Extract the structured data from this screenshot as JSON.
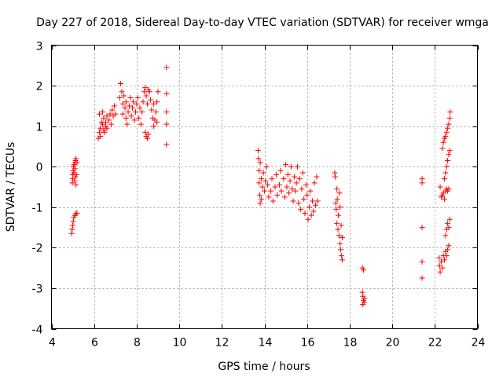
{
  "chart_data": {
    "type": "scatter",
    "title": "Day 227 of 2018, Sidereal Day-to-day VTEC variation (SDTVAR) for receiver wmga",
    "xlabel": "GPS time / hours",
    "ylabel": "SDTVAR / TECUs",
    "xlim": [
      4,
      24
    ],
    "ylim": [
      -4,
      3
    ],
    "xticks": [
      "4",
      "6",
      "8",
      "10",
      "12",
      "14",
      "16",
      "18",
      "20",
      "22",
      "24"
    ],
    "yticks": [
      "-4",
      "-3",
      "-2",
      "-1",
      "0",
      "1",
      "2",
      "3"
    ],
    "grid": true,
    "marker": "+",
    "color": "#ff0000",
    "series": [
      {
        "name": "SDTVAR",
        "points": [
          [
            4.95,
            -1.65
          ],
          [
            4.97,
            -1.55
          ],
          [
            5.0,
            -1.45
          ],
          [
            5.02,
            -1.35
          ],
          [
            5.05,
            -1.25
          ],
          [
            5.1,
            -1.2
          ],
          [
            5.15,
            -1.15
          ],
          [
            5.2,
            -1.15
          ],
          [
            4.98,
            -0.4
          ],
          [
            5.0,
            -0.3
          ],
          [
            5.0,
            -0.2
          ],
          [
            5.02,
            -0.1
          ],
          [
            5.03,
            0.0
          ],
          [
            5.05,
            -0.15
          ],
          [
            5.06,
            0.05
          ],
          [
            5.08,
            -0.35
          ],
          [
            5.1,
            0.1
          ],
          [
            5.1,
            -0.05
          ],
          [
            5.12,
            -0.25
          ],
          [
            5.13,
            0.15
          ],
          [
            5.15,
            -0.45
          ],
          [
            5.15,
            0.2
          ],
          [
            5.17,
            -0.2
          ],
          [
            5.2,
            0.1
          ],
          [
            6.2,
            0.7
          ],
          [
            6.25,
            0.85
          ],
          [
            6.3,
            0.95
          ],
          [
            6.35,
            1.1
          ],
          [
            6.3,
            0.75
          ],
          [
            6.4,
            1.05
          ],
          [
            6.45,
            0.9
          ],
          [
            6.45,
            1.2
          ],
          [
            6.5,
            0.85
          ],
          [
            6.55,
            1.1
          ],
          [
            6.6,
            1.25
          ],
          [
            6.6,
            0.95
          ],
          [
            6.7,
            1.15
          ],
          [
            6.75,
            1.3
          ],
          [
            6.8,
            1.05
          ],
          [
            6.85,
            1.4
          ],
          [
            6.9,
            1.25
          ],
          [
            6.95,
            1.5
          ],
          [
            7.0,
            1.3
          ],
          [
            6.25,
            1.3
          ],
          [
            6.4,
            1.35
          ],
          [
            6.55,
            1.0
          ],
          [
            7.2,
            1.7
          ],
          [
            7.25,
            2.05
          ],
          [
            7.3,
            1.85
          ],
          [
            7.35,
            1.55
          ],
          [
            7.35,
            1.3
          ],
          [
            7.4,
            1.75
          ],
          [
            7.45,
            1.45
          ],
          [
            7.5,
            1.2
          ],
          [
            7.5,
            1.6
          ],
          [
            7.55,
            1.05
          ],
          [
            7.6,
            1.35
          ],
          [
            7.65,
            1.5
          ],
          [
            7.7,
            1.7
          ],
          [
            7.75,
            1.25
          ],
          [
            7.8,
            1.45
          ],
          [
            7.85,
            1.6
          ],
          [
            7.9,
            1.15
          ],
          [
            7.95,
            1.35
          ],
          [
            8.0,
            1.55
          ],
          [
            8.05,
            1.7
          ],
          [
            8.1,
            1.2
          ],
          [
            8.15,
            1.45
          ],
          [
            8.2,
            1.05
          ],
          [
            8.25,
            1.35
          ],
          [
            8.3,
            1.6
          ],
          [
            8.35,
            1.85
          ],
          [
            8.4,
            1.95
          ],
          [
            8.45,
            1.75
          ],
          [
            8.5,
            1.55
          ],
          [
            8.55,
            1.9
          ],
          [
            8.6,
            1.85
          ],
          [
            8.65,
            1.65
          ],
          [
            8.4,
            0.85
          ],
          [
            8.45,
            0.75
          ],
          [
            8.5,
            0.7
          ],
          [
            8.55,
            0.8
          ],
          [
            8.7,
            1.4
          ],
          [
            8.75,
            1.2
          ],
          [
            8.8,
            1.0
          ],
          [
            8.85,
            1.15
          ],
          [
            8.9,
            1.35
          ],
          [
            8.95,
            1.6
          ],
          [
            9.0,
            1.85
          ],
          [
            8.95,
            1.1
          ],
          [
            8.8,
            1.55
          ],
          [
            9.4,
            2.45
          ],
          [
            9.4,
            1.8
          ],
          [
            9.4,
            1.35
          ],
          [
            9.4,
            1.05
          ],
          [
            9.4,
            0.55
          ],
          [
            13.7,
            0.4
          ],
          [
            13.72,
            0.2
          ],
          [
            13.75,
            -0.1
          ],
          [
            13.75,
            -0.4
          ],
          [
            13.78,
            -0.7
          ],
          [
            13.8,
            -0.9
          ],
          [
            13.8,
            0.1
          ],
          [
            13.85,
            -0.3
          ],
          [
            13.85,
            -0.8
          ],
          [
            13.9,
            -0.5
          ],
          [
            13.95,
            -0.15
          ],
          [
            14.0,
            -0.6
          ],
          [
            14.05,
            -0.35
          ],
          [
            14.1,
            0.0
          ],
          [
            14.15,
            -0.45
          ],
          [
            14.2,
            -0.75
          ],
          [
            14.3,
            -0.6
          ],
          [
            14.35,
            -0.3
          ],
          [
            14.4,
            -0.85
          ],
          [
            14.5,
            -0.5
          ],
          [
            14.55,
            -0.2
          ],
          [
            14.6,
            -0.7
          ],
          [
            14.7,
            -0.45
          ],
          [
            14.75,
            -0.1
          ],
          [
            14.8,
            -0.6
          ],
          [
            14.9,
            -0.3
          ],
          [
            14.95,
            -0.75
          ],
          [
            15.0,
            0.05
          ],
          [
            15.05,
            -0.5
          ],
          [
            15.1,
            -0.2
          ],
          [
            15.15,
            -0.65
          ],
          [
            15.2,
            -0.35
          ],
          [
            15.25,
            0.0
          ],
          [
            15.3,
            -0.55
          ],
          [
            15.35,
            -0.85
          ],
          [
            15.4,
            -0.25
          ],
          [
            15.45,
            -0.6
          ],
          [
            15.5,
            -0.4
          ],
          [
            15.55,
            0.0
          ],
          [
            15.6,
            -0.9
          ],
          [
            15.65,
            -0.3
          ],
          [
            15.7,
            -1.05
          ],
          [
            15.75,
            -0.55
          ],
          [
            15.8,
            -0.15
          ],
          [
            15.85,
            -0.8
          ],
          [
            15.9,
            -1.15
          ],
          [
            15.95,
            -0.45
          ],
          [
            16.0,
            -0.7
          ],
          [
            16.05,
            -1.3
          ],
          [
            16.1,
            -1.0
          ],
          [
            16.15,
            -0.6
          ],
          [
            16.2,
            -1.2
          ],
          [
            16.25,
            -0.85
          ],
          [
            16.3,
            -1.1
          ],
          [
            16.35,
            -0.4
          ],
          [
            16.4,
            -0.95
          ],
          [
            16.45,
            -0.25
          ],
          [
            16.5,
            -0.85
          ],
          [
            17.3,
            -0.15
          ],
          [
            17.32,
            -0.25
          ],
          [
            17.35,
            -0.9
          ],
          [
            17.37,
            -1.05
          ],
          [
            17.4,
            -1.4
          ],
          [
            17.4,
            -0.55
          ],
          [
            17.42,
            -0.8
          ],
          [
            17.45,
            -1.55
          ],
          [
            17.47,
            -1.2
          ],
          [
            17.5,
            -1.7
          ],
          [
            17.52,
            -0.65
          ],
          [
            17.55,
            -1.9
          ],
          [
            17.55,
            -1.0
          ],
          [
            17.58,
            -2.05
          ],
          [
            17.6,
            -1.45
          ],
          [
            17.62,
            -2.2
          ],
          [
            17.65,
            -2.3
          ],
          [
            17.65,
            -1.75
          ],
          [
            18.6,
            -2.5
          ],
          [
            18.65,
            -2.55
          ],
          [
            18.6,
            -3.1
          ],
          [
            18.62,
            -3.2
          ],
          [
            18.65,
            -3.3
          ],
          [
            18.68,
            -3.35
          ],
          [
            18.7,
            -3.25
          ],
          [
            18.62,
            -3.4
          ],
          [
            21.4,
            -0.3
          ],
          [
            21.4,
            -0.4
          ],
          [
            21.4,
            -1.5
          ],
          [
            21.4,
            -2.35
          ],
          [
            21.4,
            -2.75
          ],
          [
            22.2,
            -2.25
          ],
          [
            22.22,
            -2.45
          ],
          [
            22.25,
            -2.6
          ],
          [
            22.3,
            -2.35
          ],
          [
            22.35,
            -2.5
          ],
          [
            22.4,
            -2.2
          ],
          [
            22.45,
            -2.3
          ],
          [
            22.5,
            -2.1
          ],
          [
            22.55,
            -2.2
          ],
          [
            22.6,
            -2.05
          ],
          [
            22.65,
            -1.95
          ],
          [
            22.25,
            -0.5
          ],
          [
            22.3,
            -0.75
          ],
          [
            22.35,
            -0.7
          ],
          [
            22.4,
            -0.65
          ],
          [
            22.45,
            -0.8
          ],
          [
            22.5,
            -0.6
          ],
          [
            22.55,
            -0.55
          ],
          [
            22.6,
            -0.6
          ],
          [
            22.65,
            -0.55
          ],
          [
            22.35,
            0.45
          ],
          [
            22.4,
            0.6
          ],
          [
            22.45,
            0.7
          ],
          [
            22.5,
            0.75
          ],
          [
            22.55,
            0.85
          ],
          [
            22.6,
            0.95
          ],
          [
            22.65,
            1.05
          ],
          [
            22.7,
            1.2
          ],
          [
            22.72,
            1.35
          ],
          [
            22.45,
            -0.3
          ],
          [
            22.5,
            -0.15
          ],
          [
            22.55,
            0.0
          ],
          [
            22.6,
            0.15
          ],
          [
            22.65,
            0.3
          ],
          [
            22.7,
            0.4
          ],
          [
            22.5,
            -1.7
          ],
          [
            22.55,
            -1.55
          ],
          [
            22.6,
            -1.4
          ],
          [
            22.65,
            -1.5
          ],
          [
            22.7,
            -1.3
          ]
        ]
      }
    ]
  }
}
